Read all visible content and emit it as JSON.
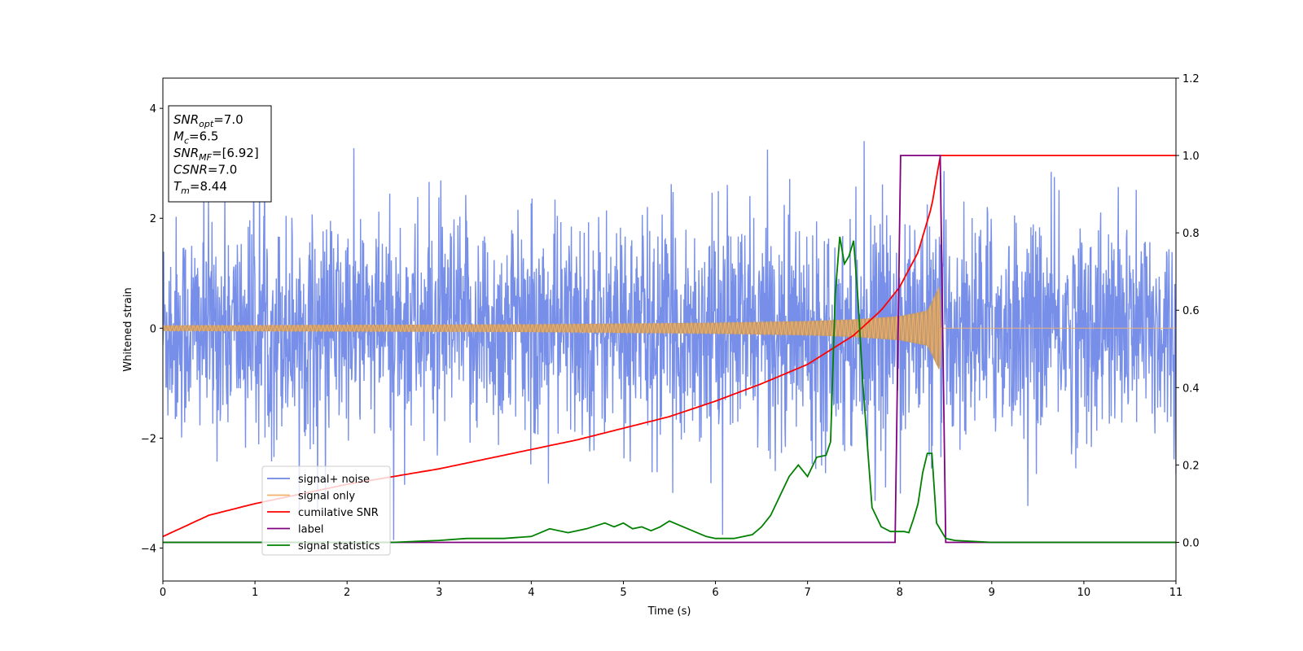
{
  "chart_data": {
    "type": "line",
    "xlabel": "Time (s)",
    "ylabel": "Whitened strain",
    "xlim": [
      0,
      11
    ],
    "ylim": [
      -4.6,
      4.55
    ],
    "y2lim": [
      -0.1,
      1.2
    ],
    "grid": false,
    "x_ticks": [
      "0",
      "1",
      "2",
      "3",
      "4",
      "5",
      "6",
      "7",
      "8",
      "9",
      "10",
      "11"
    ],
    "y_ticks": [
      "−4",
      "−2",
      "0",
      "2",
      "4"
    ],
    "y2_ticks": [
      "0.0",
      "0.2",
      "0.4",
      "0.6",
      "0.8",
      "1.0",
      "1.2"
    ],
    "legend_position": "lower-left",
    "annotation": {
      "lines": [
        {
          "main": "SNR",
          "sub": "opt",
          "value": "=7.0"
        },
        {
          "main": "M",
          "sub": "c",
          "value": "=6.5"
        },
        {
          "main": "SNR",
          "sub": "MF",
          "value": "=[6.92]"
        },
        {
          "main": "CSNR",
          "sub": "",
          "value": "=7.0"
        },
        {
          "main": "T",
          "sub": "m",
          "value": "=8.44"
        }
      ]
    },
    "series": [
      {
        "name": "signal+ noise",
        "axis": "left",
        "color": "#6b86e6",
        "description_values": {
          "typical_std": 1.0,
          "max_peak": 4.15,
          "min_peak": -4.15
        }
      },
      {
        "name": "signal only",
        "axis": "left",
        "color": "#f5b06a",
        "envelope": {
          "x": [
            0,
            2,
            4,
            6,
            7,
            7.5,
            8,
            8.3,
            8.44,
            8.45,
            11
          ],
          "amplitude": [
            0.05,
            0.06,
            0.07,
            0.1,
            0.13,
            0.16,
            0.22,
            0.32,
            0.8,
            0.0,
            0.0
          ]
        }
      },
      {
        "name": "cumilative SNR",
        "axis": "right",
        "color": "#ff0000",
        "x": [
          0,
          0.5,
          1,
          1.5,
          2,
          2.5,
          3,
          3.5,
          4,
          4.5,
          5,
          5.5,
          6,
          6.5,
          7,
          7.5,
          7.8,
          8.0,
          8.2,
          8.35,
          8.44,
          9,
          10,
          11
        ],
        "values": [
          0.015,
          0.07,
          0.1,
          0.125,
          0.15,
          0.17,
          0.19,
          0.215,
          0.24,
          0.265,
          0.295,
          0.325,
          0.365,
          0.41,
          0.46,
          0.535,
          0.6,
          0.66,
          0.75,
          0.87,
          1.0,
          1.0,
          1.0,
          1.0
        ]
      },
      {
        "name": "label",
        "axis": "right",
        "color": "#800080",
        "x": [
          0,
          7.95,
          8.01,
          8.44,
          8.5,
          11
        ],
        "values": [
          0,
          0,
          1,
          1,
          0,
          0
        ]
      },
      {
        "name": "signal statistics",
        "axis": "right",
        "color": "#008000",
        "x": [
          0,
          0.5,
          1,
          1.5,
          2,
          2.5,
          3,
          3.3,
          3.7,
          4.0,
          4.2,
          4.4,
          4.6,
          4.8,
          4.9,
          5.0,
          5.1,
          5.2,
          5.3,
          5.4,
          5.5,
          5.6,
          5.7,
          5.8,
          5.9,
          6.0,
          6.2,
          6.4,
          6.5,
          6.6,
          6.7,
          6.8,
          6.9,
          7.0,
          7.1,
          7.2,
          7.25,
          7.3,
          7.35,
          7.4,
          7.45,
          7.5,
          7.55,
          7.6,
          7.7,
          7.8,
          7.9,
          8.0,
          8.05,
          8.1,
          8.15,
          8.2,
          8.25,
          8.3,
          8.35,
          8.4,
          8.5,
          8.6,
          9,
          10,
          11
        ],
        "values": [
          0.0,
          0.0,
          0.0,
          0.0,
          0.0,
          0.0,
          0.005,
          0.01,
          0.01,
          0.015,
          0.035,
          0.025,
          0.035,
          0.05,
          0.04,
          0.05,
          0.035,
          0.04,
          0.03,
          0.04,
          0.055,
          0.045,
          0.035,
          0.025,
          0.015,
          0.01,
          0.01,
          0.02,
          0.04,
          0.07,
          0.12,
          0.17,
          0.2,
          0.17,
          0.22,
          0.225,
          0.26,
          0.64,
          0.79,
          0.72,
          0.74,
          0.78,
          0.62,
          0.41,
          0.09,
          0.04,
          0.028,
          0.028,
          0.028,
          0.025,
          0.06,
          0.1,
          0.18,
          0.23,
          0.23,
          0.05,
          0.01,
          0.005,
          0.0,
          0.0,
          0.0
        ]
      }
    ]
  }
}
